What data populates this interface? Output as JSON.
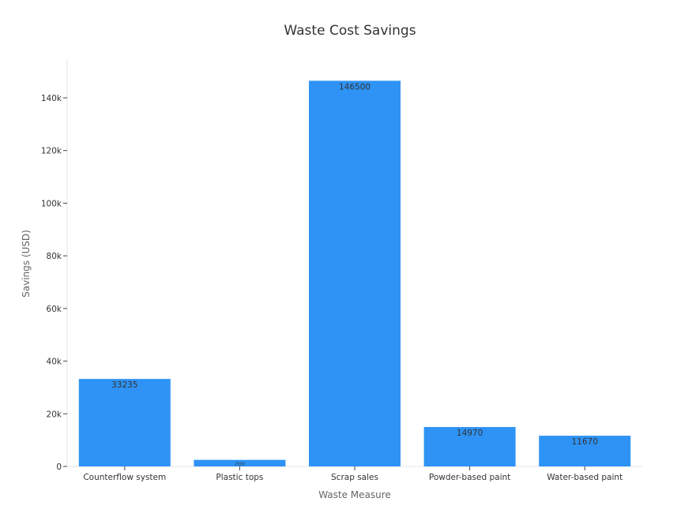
{
  "chart_data": {
    "type": "bar",
    "title": "Waste Cost Savings",
    "xlabel": "Waste Measure",
    "ylabel": "Savings (USD)",
    "categories": [
      "Counterflow system",
      "Plastic tops",
      "Scrap sales",
      "Powder-based paint",
      "Water-based paint"
    ],
    "values": [
      33235,
      2500,
      146500,
      14970,
      11670
    ],
    "data_labels": [
      "33235",
      "2500",
      "146500",
      "14970",
      "11670"
    ],
    "ylim": [
      0,
      155000
    ],
    "yticks": [
      0,
      20000,
      40000,
      60000,
      80000,
      100000,
      120000,
      140000
    ],
    "ytick_labels": [
      "0",
      "20k",
      "40k",
      "60k",
      "80k",
      "100k",
      "120k",
      "140k"
    ],
    "grid": false,
    "bar_color": "#2e93f5"
  }
}
